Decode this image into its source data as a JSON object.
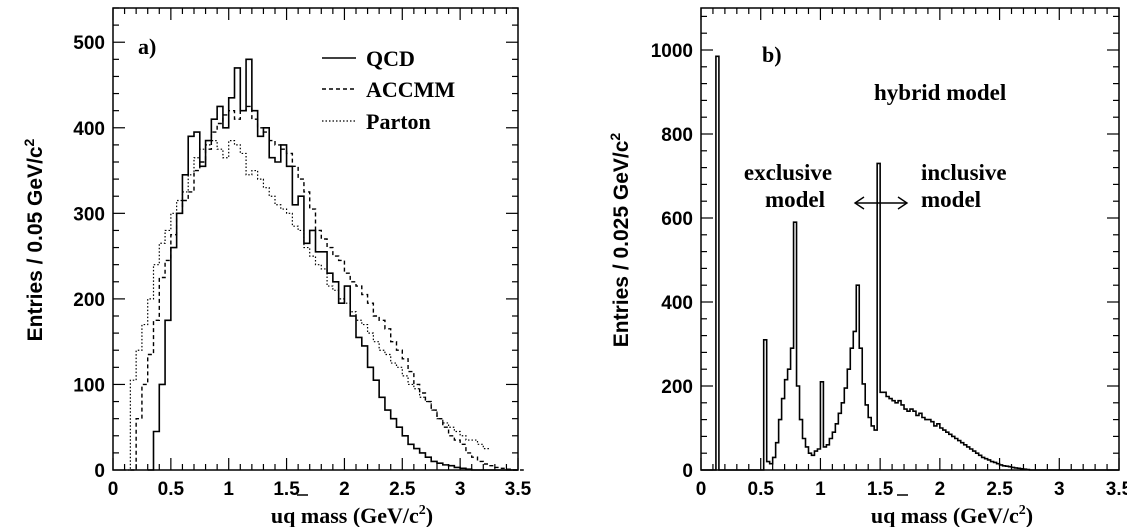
{
  "chart_data": [
    {
      "type": "line",
      "panel_label": "a)",
      "ylabel": "Entries / 0.05 GeV/c",
      "ylabel_sup": "2",
      "xlabel_prefix": "u",
      "xlabel_bar": "q",
      "xlabel_main": " mass (GeV/c",
      "xlabel_sup": "2",
      "xlabel_tail": ")",
      "xlim": [
        0,
        3.5
      ],
      "ylim": [
        0,
        540
      ],
      "xticks": [
        0,
        0.5,
        1,
        1.5,
        2,
        2.5,
        3,
        3.5
      ],
      "xtick_labels": [
        "0",
        "0.5",
        "1",
        "1.5",
        "2",
        "2.5",
        "3",
        "3.5"
      ],
      "yticks": [
        0,
        100,
        200,
        300,
        400,
        500
      ],
      "ytick_labels": [
        "0",
        "100",
        "200",
        "300",
        "400",
        "500"
      ],
      "bin_width": 0.05,
      "series": [
        {
          "name": "QCD",
          "style": "solid",
          "x_start": 0.3,
          "values": [
            0,
            45,
            100,
            175,
            260,
            300,
            345,
            390,
            395,
            355,
            385,
            410,
            425,
            400,
            435,
            470,
            420,
            480,
            420,
            390,
            400,
            365,
            360,
            380,
            355,
            310,
            320,
            265,
            280,
            255,
            255,
            230,
            220,
            195,
            215,
            180,
            155,
            145,
            120,
            105,
            85,
            70,
            60,
            50,
            40,
            30,
            25,
            20,
            15,
            10,
            8,
            6,
            5,
            3,
            2,
            1,
            0,
            0,
            0,
            0,
            0,
            0,
            0,
            0
          ]
        },
        {
          "name": "ACCMM",
          "style": "dashed",
          "x_start": 0.15,
          "values": [
            0,
            60,
            100,
            135,
            175,
            225,
            245,
            275,
            300,
            315,
            325,
            350,
            360,
            375,
            395,
            405,
            415,
            420,
            410,
            420,
            425,
            410,
            400,
            395,
            385,
            380,
            375,
            370,
            355,
            340,
            325,
            305,
            280,
            270,
            260,
            250,
            245,
            230,
            220,
            215,
            205,
            195,
            180,
            175,
            165,
            150,
            140,
            130,
            115,
            100,
            90,
            80,
            70,
            60,
            50,
            40,
            35,
            30,
            20,
            15,
            10,
            7,
            5,
            3,
            2,
            1,
            0,
            0
          ]
        },
        {
          "name": "Parton",
          "style": "dotted",
          "x_start": 0.1,
          "values": [
            0,
            105,
            140,
            170,
            200,
            240,
            265,
            280,
            300,
            315,
            325,
            345,
            365,
            375,
            380,
            385,
            375,
            365,
            385,
            380,
            370,
            345,
            350,
            340,
            330,
            320,
            310,
            305,
            300,
            285,
            280,
            260,
            250,
            240,
            235,
            215,
            210,
            200,
            195,
            185,
            175,
            170,
            160,
            150,
            140,
            135,
            125,
            120,
            110,
            100,
            95,
            85,
            80,
            70,
            60,
            55,
            50,
            45,
            40,
            35,
            35,
            30,
            25
          ]
        }
      ]
    },
    {
      "type": "line",
      "panel_label": "b)",
      "ylabel": "Entries / 0.025 GeV/c",
      "ylabel_sup": "2",
      "xlabel_prefix": "u",
      "xlabel_bar": "q",
      "xlabel_main": " mass (GeV/c",
      "xlabel_sup": "2",
      "xlabel_tail": ")",
      "xlim": [
        0,
        3.5
      ],
      "ylim": [
        0,
        1100
      ],
      "xticks": [
        0,
        0.5,
        1,
        1.5,
        2,
        2.5,
        3,
        3.5
      ],
      "xtick_labels": [
        "0",
        "0.5",
        "1",
        "1.5",
        "2",
        "2.5",
        "3",
        "3.5"
      ],
      "yticks": [
        0,
        200,
        400,
        600,
        800,
        1000
      ],
      "ytick_labels": [
        "0",
        "200",
        "400",
        "600",
        "800",
        "1000"
      ],
      "bin_width": 0.025,
      "series": [
        {
          "name": "",
          "style": "solid",
          "x_start": 0,
          "values": [
            0,
            0,
            0,
            0,
            0,
            985,
            0,
            0,
            0,
            0,
            0,
            0,
            0,
            0,
            0,
            0,
            0,
            0,
            0,
            0,
            0,
            310,
            20,
            15,
            30,
            65,
            120,
            170,
            215,
            240,
            290,
            590,
            200,
            120,
            75,
            55,
            40,
            35,
            45,
            50,
            210,
            55,
            60,
            75,
            90,
            110,
            135,
            160,
            195,
            240,
            290,
            330,
            440,
            290,
            205,
            155,
            125,
            105,
            95,
            730,
            185,
            185,
            175,
            170,
            165,
            160,
            165,
            155,
            145,
            140,
            145,
            140,
            130,
            135,
            125,
            120,
            120,
            115,
            105,
            110,
            100,
            95,
            90,
            85,
            80,
            75,
            70,
            65,
            60,
            55,
            50,
            45,
            40,
            35,
            30,
            27,
            24,
            20,
            18,
            15,
            12,
            10,
            9,
            8,
            6,
            5,
            4,
            3,
            2,
            1,
            0,
            0,
            0,
            0,
            0,
            0,
            0,
            0,
            0,
            0,
            0,
            0,
            0,
            0,
            0,
            0,
            0,
            0,
            0,
            0,
            0,
            0,
            0,
            0,
            0,
            0,
            0,
            0,
            0,
            0
          ]
        }
      ],
      "annotations": {
        "hybrid": "hybrid model",
        "exclusive_line1": "exclusive",
        "exclusive_line2": "model",
        "inclusive_line1": "inclusive",
        "inclusive_line2": "model"
      }
    }
  ]
}
